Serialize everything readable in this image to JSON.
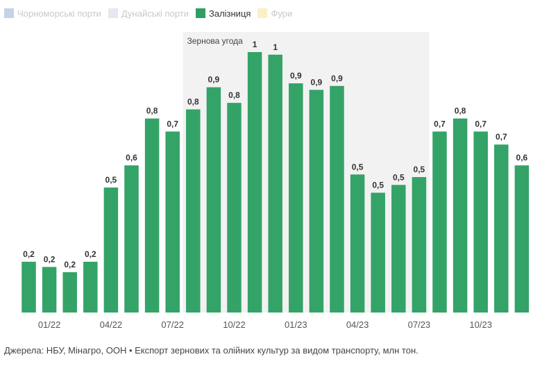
{
  "legend": [
    {
      "label": "Чорноморські порти",
      "color": "#c5d3e8",
      "active": false
    },
    {
      "label": "Дунайські порти",
      "color": "#e4e9f0",
      "active": false
    },
    {
      "label": "Залізниця",
      "color": "#2e9e62",
      "active": true
    },
    {
      "label": "Фури",
      "color": "#fbefc5",
      "active": false
    }
  ],
  "colors": {
    "bar": "#34a367",
    "highlight": "#f2f2f2",
    "label": "#333333",
    "tick": "#555555"
  },
  "chart_data": {
    "type": "bar",
    "series": [
      {
        "name": "Залізниця",
        "values": [
          0.2,
          0.2,
          0.2,
          0.2,
          0.5,
          0.6,
          0.8,
          0.7,
          0.8,
          0.9,
          0.8,
          1,
          1,
          0.9,
          0.9,
          0.9,
          0.5,
          0.5,
          0.5,
          0.5,
          0.7,
          0.8,
          0.7,
          0.7,
          0.6
        ]
      }
    ],
    "data_labels": [
      "0,2",
      "0,2",
      "0,2",
      "0,2",
      "0,5",
      "0,6",
      "0,8",
      "0,7",
      "0,8",
      "0,9",
      "0,8",
      "1",
      "1",
      "0,9",
      "0,9",
      "0,9",
      "0,5",
      "0,5",
      "0,5",
      "0,5",
      "0,7",
      "0,8",
      "0,7",
      "0,7",
      "0,6"
    ],
    "bar_heights": [
      0.195,
      0.175,
      0.155,
      0.195,
      0.48,
      0.565,
      0.745,
      0.695,
      0.78,
      0.865,
      0.805,
      1.0,
      0.99,
      0.88,
      0.855,
      0.87,
      0.53,
      0.46,
      0.49,
      0.52,
      0.695,
      0.745,
      0.695,
      0.645,
      0.565
    ],
    "x_ticks": [
      {
        "index": 1,
        "label": "01/22"
      },
      {
        "index": 4,
        "label": "04/22"
      },
      {
        "index": 7,
        "label": "07/22"
      },
      {
        "index": 10,
        "label": "10/22"
      },
      {
        "index": 13,
        "label": "01/23"
      },
      {
        "index": 16,
        "label": "04/23"
      },
      {
        "index": 19,
        "label": "07/23"
      },
      {
        "index": 22,
        "label": "10/23"
      }
    ],
    "ylim": [
      0,
      1
    ],
    "grid": false,
    "highlight": {
      "label": "Зернова угода",
      "start_index": 8,
      "end_index": 19
    }
  },
  "footer": {
    "source": "Джерела: НБУ, Мінагро, ООН • Експорт зернових та олійних культур за видом транспорту, млн тон."
  }
}
